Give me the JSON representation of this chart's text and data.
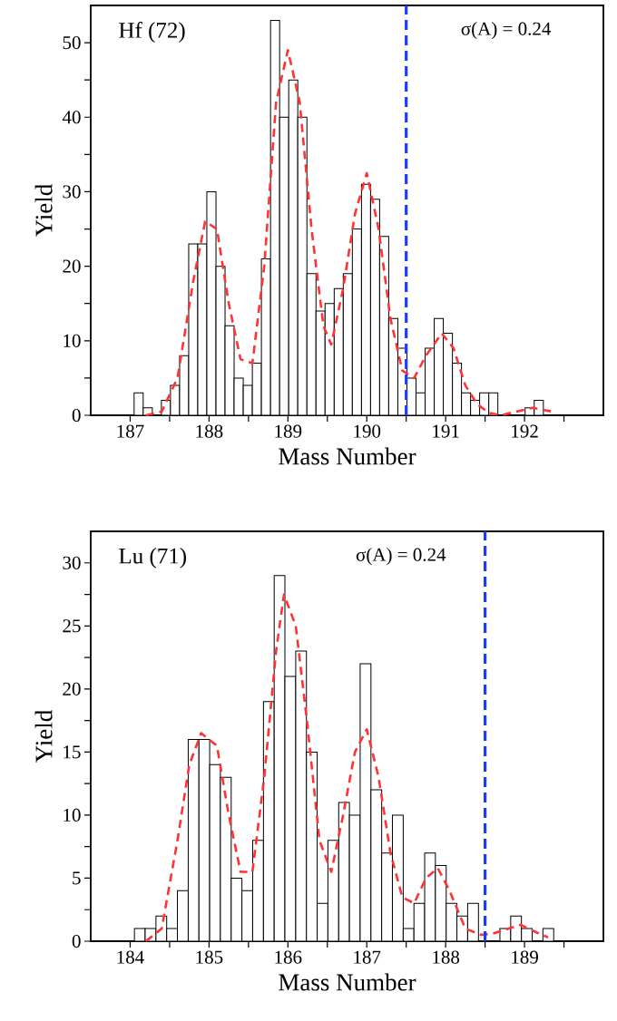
{
  "chart_data": [
    {
      "type": "histogram",
      "annotations": [
        "Hf (72)",
        "σ(A) = 0.24"
      ],
      "xlabel": "Mass Number",
      "ylabel": "Yield",
      "bins": [
        187.05,
        187.165,
        187.281,
        187.396,
        187.511,
        187.627,
        187.742,
        187.857,
        187.972,
        188.088,
        188.203,
        188.318,
        188.434,
        188.549,
        188.664,
        188.78,
        188.895,
        189.01,
        189.125,
        189.241,
        189.356,
        189.471,
        189.587,
        189.702,
        189.817,
        189.933,
        190.048,
        190.163,
        190.278,
        190.394,
        190.509,
        190.624,
        190.74,
        190.855,
        190.97,
        191.086,
        191.201,
        191.316,
        191.431,
        191.547,
        191.662,
        191.777,
        191.893,
        192.008,
        192.123,
        192.239
      ],
      "values": [
        3,
        1,
        0,
        2,
        4,
        8,
        23,
        23,
        30,
        20,
        12,
        5,
        4,
        7,
        21,
        53,
        40,
        45,
        40,
        19,
        14,
        15,
        17,
        19,
        25,
        31,
        29,
        24,
        13,
        9,
        5,
        3,
        9,
        13,
        11,
        7,
        3,
        2,
        3,
        3,
        0,
        0,
        0,
        1,
        2
      ],
      "color": "#ffffff",
      "series": [
        {
          "type": "line",
          "color": "#ff3333",
          "line_style": "dashed",
          "x": [
            187.2,
            187.4,
            187.6,
            187.8,
            187.95,
            188.1,
            188.25,
            188.4,
            188.55,
            188.7,
            188.85,
            189.0,
            189.15,
            189.3,
            189.45,
            189.55,
            189.7,
            189.85,
            190.0,
            190.15,
            190.3,
            190.45,
            190.6,
            190.75,
            190.95,
            191.1,
            191.25,
            191.4,
            191.55,
            191.7,
            191.9,
            192.1,
            192.35
          ],
          "values": [
            0,
            0.5,
            5,
            18,
            26,
            25,
            15,
            7.5,
            7,
            20,
            42,
            49,
            42,
            25,
            12,
            9.5,
            17,
            27,
            32.5,
            25,
            13,
            6,
            5,
            8,
            11,
            9,
            4,
            1.5,
            0.3,
            0,
            0.5,
            1,
            0.5
          ]
        }
      ],
      "ref_lines": [
        {
          "axis": "x",
          "value": 190.5,
          "color": "#1a3cff",
          "line_style": "dashed"
        }
      ],
      "xlim": [
        186.5,
        193
      ],
      "ylim": [
        0,
        55
      ],
      "xticks": [
        187,
        {
          "value": 187.5,
          "label": null
        },
        188,
        {
          "value": 188.5,
          "label": null
        },
        189,
        {
          "value": 189.5,
          "label": null
        },
        190,
        {
          "value": 190.5,
          "label": null
        },
        191,
        {
          "value": 191.5,
          "label": null
        },
        192,
        {
          "value": 192.5,
          "label": null
        }
      ],
      "yticks": [
        0,
        {
          "value": 5,
          "label": null
        },
        10,
        {
          "value": 15,
          "label": null
        },
        20,
        {
          "value": 25,
          "label": null
        },
        30,
        {
          "value": 35,
          "label": null
        },
        40,
        {
          "value": 45,
          "label": null
        },
        50
      ]
    },
    {
      "type": "histogram",
      "annotations": [
        "Lu (71)",
        "σ(A) = 0.24"
      ],
      "xlabel": "Mass Number",
      "ylabel": "Yield",
      "bins": [
        184.054,
        184.19,
        184.327,
        184.463,
        184.599,
        184.736,
        184.872,
        185.008,
        185.144,
        185.281,
        185.417,
        185.553,
        185.69,
        185.826,
        185.962,
        186.099,
        186.235,
        186.371,
        186.507,
        186.644,
        186.78,
        186.916,
        187.053,
        187.189,
        187.325,
        187.462,
        187.598,
        187.734,
        187.87,
        188.007,
        188.143,
        188.279,
        188.416,
        188.552,
        188.688,
        188.825,
        188.961,
        189.097,
        189.233,
        189.37
      ],
      "values": [
        1,
        1,
        2,
        1,
        4,
        16,
        16,
        14,
        13,
        5,
        4,
        8,
        19,
        29,
        21,
        23,
        15,
        3,
        8,
        11,
        10,
        22,
        12,
        7,
        10,
        1,
        3,
        7,
        6,
        3,
        2,
        3,
        0,
        0,
        1,
        2,
        1,
        0,
        1
      ],
      "color": "#ffffff",
      "series": [
        {
          "type": "line",
          "color": "#ff3333",
          "line_style": "dashed",
          "x": [
            184.2,
            184.4,
            184.6,
            184.75,
            184.9,
            185.1,
            185.25,
            185.4,
            185.55,
            185.7,
            185.85,
            185.95,
            186.1,
            186.25,
            186.4,
            186.55,
            186.7,
            186.85,
            187.0,
            187.15,
            187.3,
            187.45,
            187.6,
            187.75,
            187.9,
            188.05,
            188.25,
            188.45,
            188.6,
            188.8,
            188.95,
            189.15,
            189.3
          ],
          "values": [
            0,
            1,
            8,
            14,
            16.5,
            15.5,
            10,
            5.5,
            5.5,
            13,
            23,
            27.5,
            25,
            17,
            8,
            5.5,
            10,
            15,
            16.8,
            13,
            7,
            3.5,
            3,
            5,
            5.8,
            4,
            1,
            0.5,
            0.6,
            1,
            1.3,
            0.7,
            0.3
          ]
        }
      ],
      "ref_lines": [
        {
          "axis": "x",
          "value": 188.5,
          "color": "#1a3cff",
          "line_style": "dashed"
        }
      ],
      "xlim": [
        183.5,
        190
      ],
      "ylim": [
        0,
        32.5
      ],
      "xticks": [
        184,
        {
          "value": 184.5,
          "label": null
        },
        185,
        {
          "value": 185.5,
          "label": null
        },
        186,
        {
          "value": 186.5,
          "label": null
        },
        187,
        {
          "value": 187.5,
          "label": null
        },
        188,
        {
          "value": 188.5,
          "label": null
        },
        189,
        {
          "value": 189.5,
          "label": null
        }
      ],
      "yticks": [
        0,
        {
          "value": 2.5,
          "label": null
        },
        5,
        {
          "value": 7.5,
          "label": null
        },
        10,
        {
          "value": 12.5,
          "label": null
        },
        15,
        {
          "value": 17.5,
          "label": null
        },
        20,
        {
          "value": 22.5,
          "label": null
        },
        25,
        {
          "value": 27.5,
          "label": null
        },
        30
      ]
    }
  ]
}
